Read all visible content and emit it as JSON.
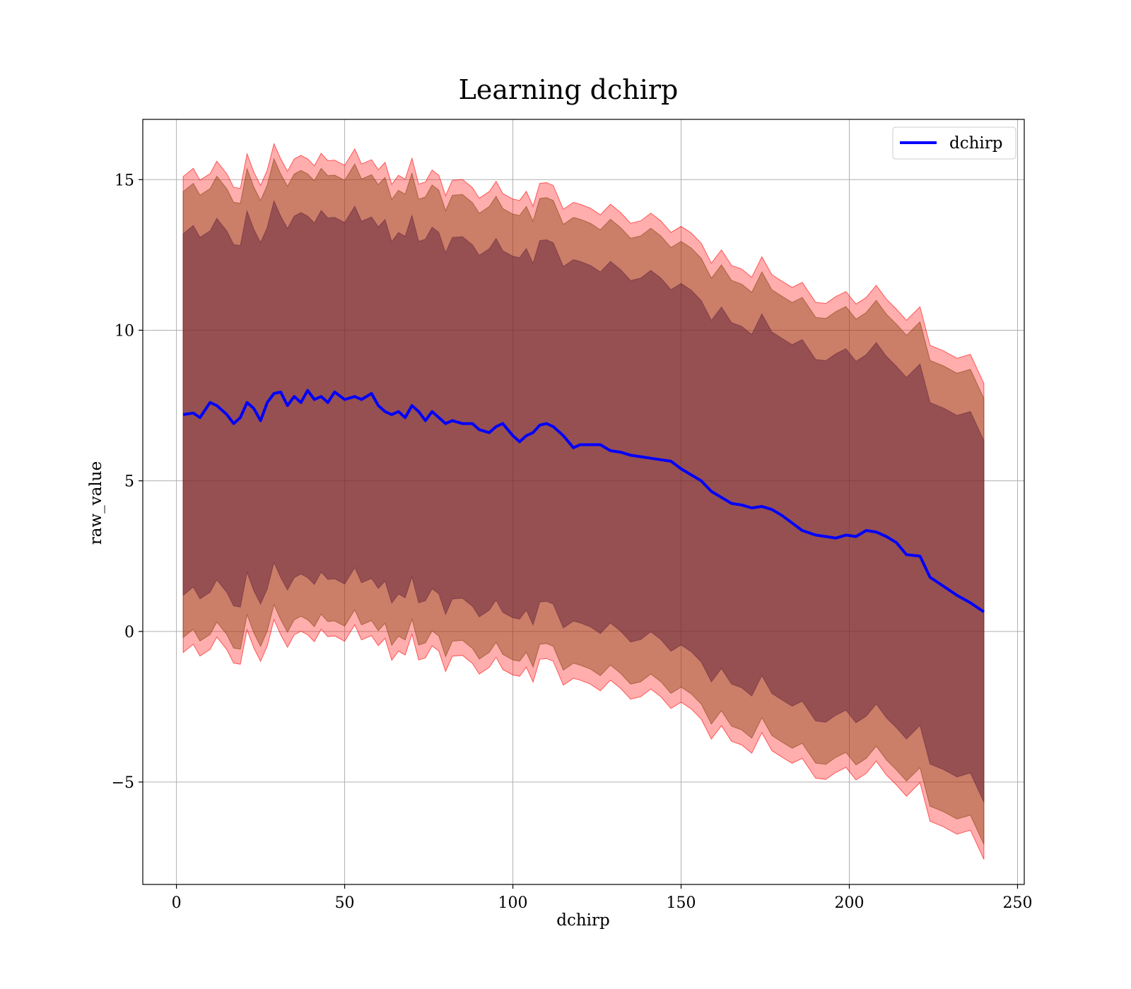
{
  "chart_data": {
    "type": "line",
    "title": "Learning dchirp",
    "xlabel": "dchirp",
    "ylabel": "raw_value",
    "xlim": [
      -10,
      252
    ],
    "ylim": [
      -8.4,
      17.0
    ],
    "xticks": [
      0,
      50,
      100,
      150,
      200,
      250
    ],
    "xtick_labels": [
      "0",
      "50",
      "100",
      "150",
      "200",
      "250"
    ],
    "yticks": [
      -5,
      0,
      5,
      10,
      15
    ],
    "ytick_labels": [
      "−5",
      "0",
      "5",
      "10",
      "15"
    ],
    "grid": true,
    "legend_position": "top-right",
    "colors": {
      "line": "#0000ff",
      "band_outer": "#ff0000",
      "band_middle": "#8b4513",
      "band_inner": "#6b2a3f"
    },
    "series": [
      {
        "name": "dchirp",
        "x": [
          2,
          5,
          7,
          10,
          12,
          15,
          17,
          19,
          21,
          23,
          25,
          27,
          29,
          31,
          33,
          35,
          37,
          39,
          41,
          43,
          45,
          47,
          50,
          53,
          55,
          58,
          60,
          62,
          64,
          66,
          68,
          70,
          72,
          74,
          76,
          78,
          80,
          82,
          85,
          88,
          90,
          93,
          95,
          97,
          100,
          102,
          104,
          106,
          108,
          110,
          112,
          115,
          118,
          120,
          123,
          126,
          129,
          132,
          135,
          138,
          141,
          144,
          147,
          150,
          153,
          156,
          159,
          162,
          165,
          168,
          171,
          174,
          177,
          180,
          183,
          186,
          190,
          193,
          196,
          199,
          202,
          205,
          208,
          211,
          214,
          217,
          221,
          224,
          228,
          232,
          236,
          240
        ],
        "y": [
          7.2,
          7.25,
          7.1,
          7.6,
          7.5,
          7.2,
          6.9,
          7.1,
          7.6,
          7.4,
          7.0,
          7.6,
          7.9,
          7.95,
          7.5,
          7.8,
          7.6,
          8.0,
          7.7,
          7.8,
          7.6,
          7.95,
          7.7,
          7.8,
          7.7,
          7.9,
          7.5,
          7.3,
          7.2,
          7.3,
          7.1,
          7.5,
          7.3,
          7.0,
          7.3,
          7.1,
          6.9,
          7.0,
          6.9,
          6.9,
          6.7,
          6.6,
          6.8,
          6.9,
          6.5,
          6.3,
          6.5,
          6.6,
          6.85,
          6.9,
          6.8,
          6.5,
          6.1,
          6.2,
          6.2,
          6.2,
          6.0,
          5.95,
          5.85,
          5.8,
          5.75,
          5.7,
          5.65,
          5.4,
          5.2,
          5.0,
          4.65,
          4.45,
          4.25,
          4.2,
          4.1,
          4.15,
          4.05,
          3.85,
          3.6,
          3.35,
          3.2,
          3.15,
          3.1,
          3.2,
          3.15,
          3.35,
          3.3,
          3.15,
          2.95,
          2.55,
          2.5,
          1.8,
          1.5,
          1.2,
          0.95,
          0.65
        ]
      }
    ],
    "bands": [
      {
        "layer": "outer",
        "lower_offset": -7.9,
        "upper_offset": 7.9
      },
      {
        "layer": "middle",
        "lower_offset": -7.4,
        "upper_offset": 7.4
      },
      {
        "layer": "inner",
        "lower_offset": -6.0,
        "upper_offset": 6.0
      }
    ]
  }
}
